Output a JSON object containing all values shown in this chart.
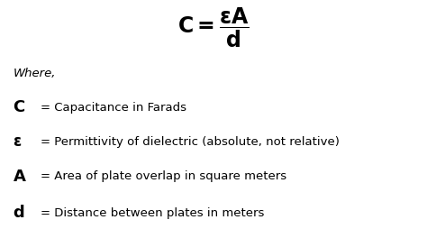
{
  "background_color": "#ffffff",
  "where_text": "Where,",
  "lines": [
    {
      "symbol": "C",
      "description": "= Capacitance in Farads"
    },
    {
      "symbol": "ε",
      "description": "= Permittivity of dielectric (absolute, not relative)"
    },
    {
      "symbol": "A",
      "description": "= Area of plate overlap in square meters"
    },
    {
      "symbol": "d",
      "description": "= Distance between plates in meters"
    }
  ]
}
